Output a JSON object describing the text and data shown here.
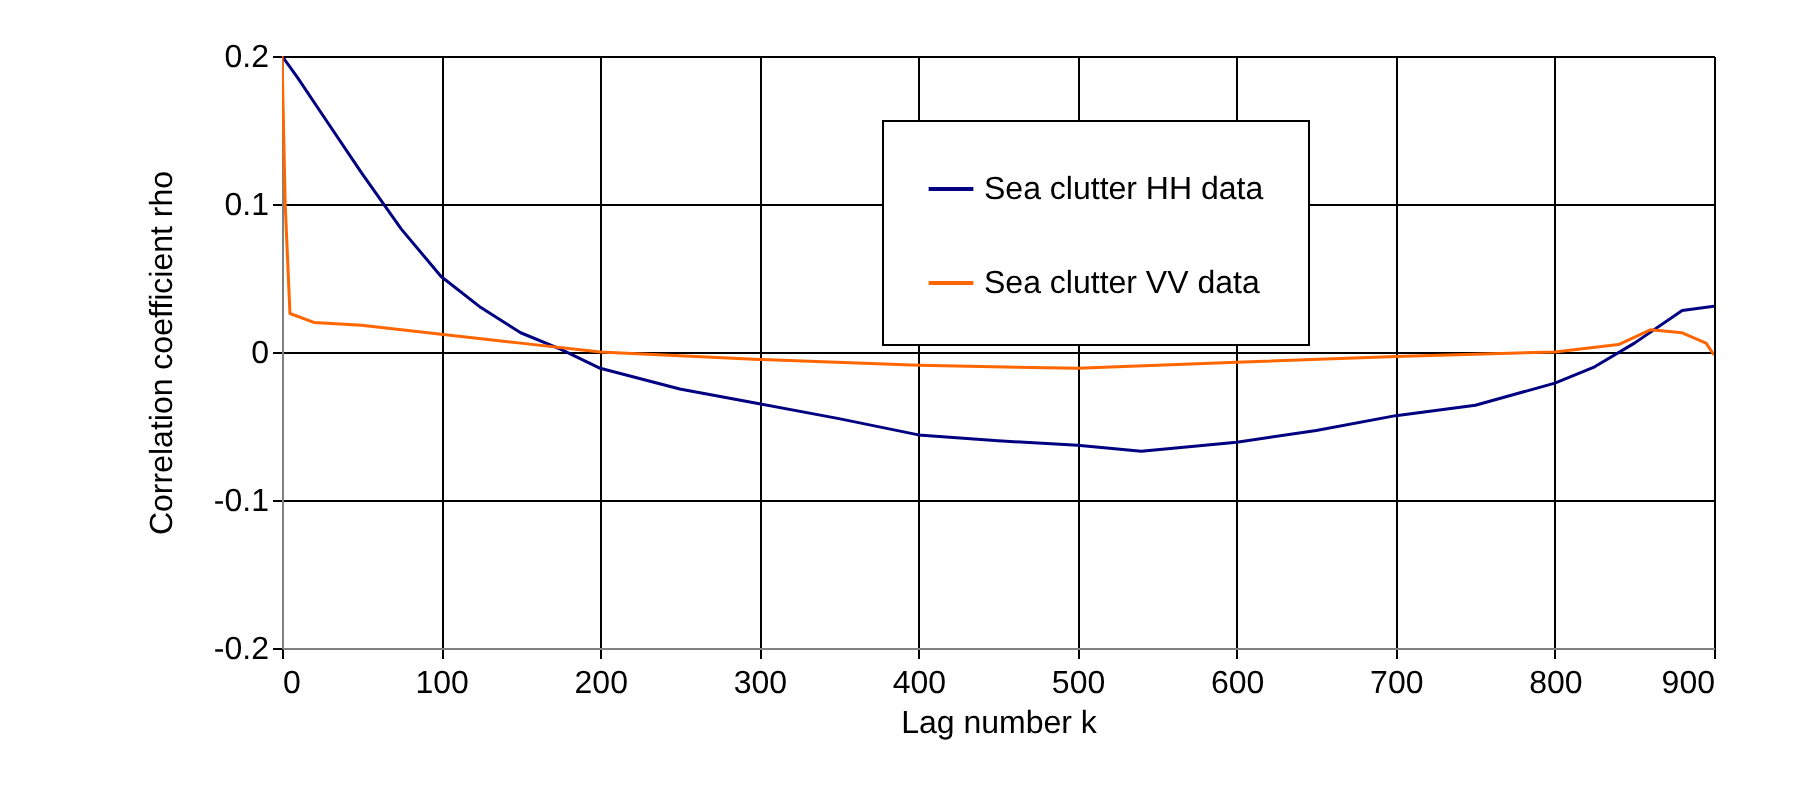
{
  "chart_data": {
    "type": "line",
    "xlabel": "Lag number k",
    "ylabel": "Correlation coefficient rho",
    "xlim": [
      0,
      900
    ],
    "xticks": [
      0,
      100,
      200,
      300,
      400,
      500,
      600,
      700,
      800,
      900
    ],
    "ylim": [
      -0.2,
      0.2
    ],
    "yticks": [
      -0.2,
      -0.1,
      0,
      0.1,
      0.2
    ],
    "grid": true,
    "legend": "top right",
    "series": [
      {
        "name": "Sea clutter HH data",
        "color": "#000080",
        "x": [
          0,
          10,
          25,
          50,
          75,
          100,
          125,
          150,
          175,
          200,
          250,
          300,
          350,
          400,
          450,
          500,
          540,
          600,
          650,
          700,
          750,
          800,
          825,
          850,
          880,
          900
        ],
        "values": [
          0.2,
          0.185,
          0.161,
          0.121,
          0.083,
          0.051,
          0.03,
          0.013,
          0.002,
          -0.011,
          -0.025,
          -0.035,
          -0.045,
          -0.056,
          -0.06,
          -0.063,
          -0.067,
          -0.061,
          -0.053,
          -0.043,
          -0.036,
          -0.021,
          -0.01,
          0.006,
          0.028,
          0.031
        ]
      },
      {
        "name": "Sea clutter VV data",
        "color": "#ff6600",
        "x": [
          0,
          2,
          5,
          20,
          50,
          100,
          150,
          200,
          300,
          400,
          500,
          600,
          700,
          800,
          840,
          860,
          880,
          895,
          900
        ],
        "values": [
          0.2,
          0.1,
          0.026,
          0.02,
          0.018,
          0.012,
          0.006,
          0.0,
          -0.005,
          -0.009,
          -0.011,
          -0.007,
          -0.003,
          0.0,
          0.005,
          0.015,
          0.013,
          0.006,
          -0.002
        ]
      }
    ]
  }
}
